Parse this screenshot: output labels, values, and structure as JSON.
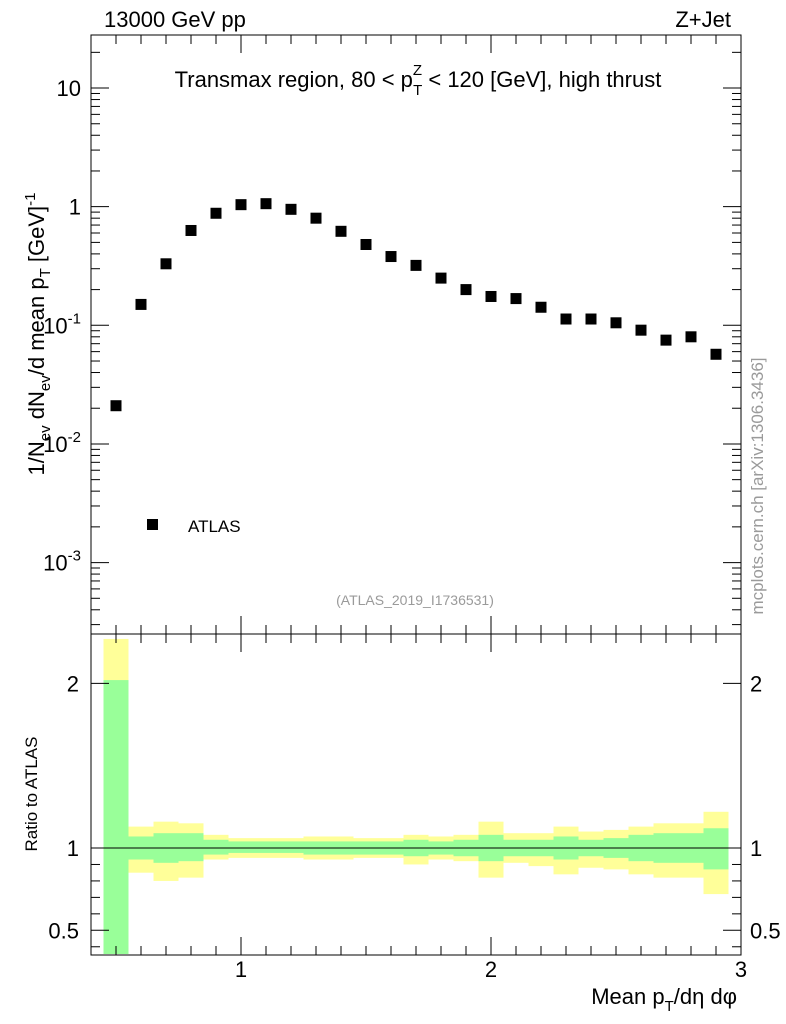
{
  "header": {
    "left": "13000 GeV pp",
    "right": "Z+Jet"
  },
  "title": {
    "prefix": "Transmax region, 80 < p",
    "sup": "Z",
    "sub": "T",
    "suffix": " < 120 [GeV], high thrust"
  },
  "side_label": "mcplots.cern.ch [arXiv:1306.3436]",
  "analysis_id": "(ATLAS_2019_I1736531)",
  "legend": {
    "label": "ATLAS"
  },
  "colors": {
    "marker": "#000000",
    "band_inner": "#99ff99",
    "band_outer": "#ffff99",
    "grey_text": "#9a9a9a"
  },
  "chart_data": [
    {
      "type": "scatter",
      "scale": "log",
      "ylabel": "1/Nev dNev/d mean pT [GeV]^-1",
      "ylabel_parts": {
        "p1": "1/N",
        "s1": "ev",
        "p2": " dN",
        "s2": "ev",
        "p3": "/d mean p",
        "s3": "T",
        "p4": " [GeV]",
        "sup": "-1"
      },
      "xlim": [
        0.4,
        3.0
      ],
      "ylim": [
        0.00025,
        28
      ],
      "y_tick_labels": [
        {
          "base": "10",
          "exp": "-3",
          "value": 0.001
        },
        {
          "base": "10",
          "exp": "-2",
          "value": 0.01
        },
        {
          "base": "10",
          "exp": "-1",
          "value": 0.1
        },
        {
          "base": "1",
          "exp": "",
          "value": 1
        },
        {
          "base": "10",
          "exp": "",
          "value": 10
        }
      ],
      "series": [
        {
          "name": "ATLAS",
          "x": [
            0.5,
            0.6,
            0.7,
            0.8,
            0.9,
            1.0,
            1.1,
            1.2,
            1.3,
            1.4,
            1.5,
            1.6,
            1.7,
            1.8,
            1.9,
            2.0,
            2.1,
            2.2,
            2.3,
            2.4,
            2.5,
            2.6,
            2.7,
            2.8,
            2.9
          ],
          "values": [
            0.021,
            0.15,
            0.33,
            0.63,
            0.88,
            1.04,
            1.06,
            0.95,
            0.8,
            0.62,
            0.48,
            0.38,
            0.32,
            0.25,
            0.2,
            0.175,
            0.168,
            0.142,
            0.113,
            0.113,
            0.105,
            0.091,
            0.075,
            0.08,
            0.057
          ]
        }
      ]
    },
    {
      "type": "area",
      "title": "Ratio to ATLAS",
      "ylabel": "Ratio to ATLAS",
      "xlabel": "Mean pT/dη dφ",
      "xlabel_parts": {
        "p1": "Mean p",
        "sub": "T",
        "p2": "/dη dφ"
      },
      "xlim": [
        0.4,
        3.0
      ],
      "ylim": [
        0.35,
        2.3
      ],
      "x_tick_labels": [
        "1",
        "2",
        "3"
      ],
      "y_tick_labels": [
        "0.5",
        "1",
        "2"
      ],
      "reference": 1,
      "bins": [
        0.45,
        0.55,
        0.65,
        0.75,
        0.85,
        0.95,
        1.05,
        1.15,
        1.25,
        1.35,
        1.45,
        1.55,
        1.65,
        1.75,
        1.85,
        1.95,
        2.05,
        2.15,
        2.25,
        2.35,
        2.45,
        2.55,
        2.65,
        2.75,
        2.85,
        2.95
      ],
      "series": [
        {
          "name": "stat",
          "upper": [
            2.02,
            1.07,
            1.09,
            1.09,
            1.05,
            1.04,
            1.04,
            1.04,
            1.04,
            1.04,
            1.04,
            1.04,
            1.05,
            1.04,
            1.05,
            1.08,
            1.05,
            1.05,
            1.07,
            1.05,
            1.06,
            1.08,
            1.09,
            1.09,
            1.12
          ],
          "lower": [
            0.3,
            0.93,
            0.91,
            0.92,
            0.96,
            0.97,
            0.97,
            0.97,
            0.96,
            0.96,
            0.96,
            0.96,
            0.95,
            0.96,
            0.95,
            0.92,
            0.95,
            0.95,
            0.93,
            0.95,
            0.94,
            0.92,
            0.91,
            0.91,
            0.87
          ]
        },
        {
          "name": "syst",
          "upper": [
            2.27,
            1.13,
            1.16,
            1.15,
            1.08,
            1.06,
            1.06,
            1.06,
            1.07,
            1.07,
            1.06,
            1.06,
            1.08,
            1.07,
            1.08,
            1.16,
            1.09,
            1.09,
            1.13,
            1.1,
            1.11,
            1.13,
            1.15,
            1.15,
            1.22
          ],
          "lower": [
            0.3,
            0.85,
            0.8,
            0.82,
            0.93,
            0.94,
            0.94,
            0.94,
            0.93,
            0.93,
            0.94,
            0.94,
            0.9,
            0.93,
            0.92,
            0.82,
            0.91,
            0.89,
            0.84,
            0.88,
            0.87,
            0.84,
            0.82,
            0.82,
            0.72
          ]
        }
      ]
    }
  ]
}
